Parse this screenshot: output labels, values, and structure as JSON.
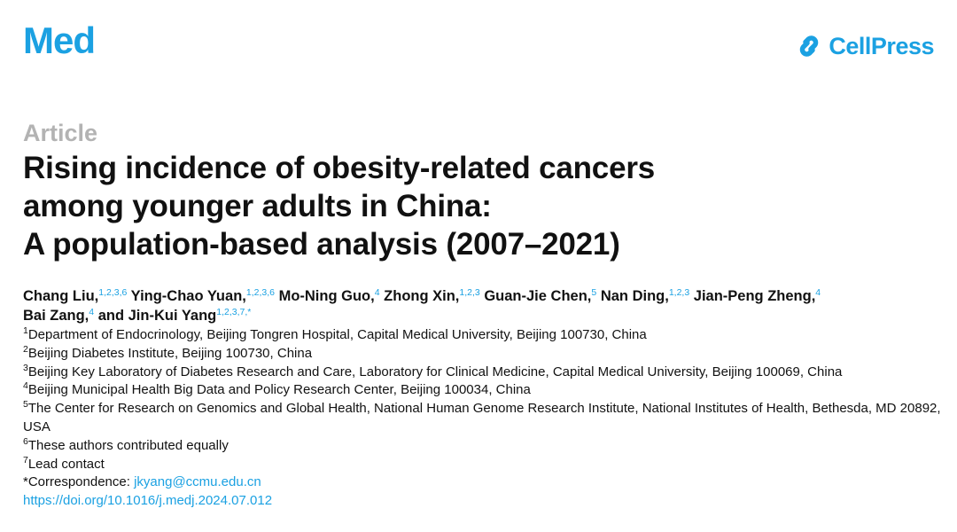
{
  "header": {
    "journal": "Med",
    "publisher": "CellPress",
    "brand_color": "#1ba1e2",
    "publisher_icon": "cellpress-logo-icon"
  },
  "article": {
    "type": "Article",
    "title_lines": [
      "Rising incidence of obesity-related cancers",
      "among younger adults in China:",
      "A population-based analysis (2007–2021)"
    ]
  },
  "authors": [
    {
      "name": "Chang Liu,",
      "sup": "1,2,3,6"
    },
    {
      "name": "Ying-Chao Yuan,",
      "sup": "1,2,3,6"
    },
    {
      "name": "Mo-Ning Guo,",
      "sup": "4"
    },
    {
      "name": "Zhong Xin,",
      "sup": "1,2,3"
    },
    {
      "name": "Guan-Jie Chen,",
      "sup": "5"
    },
    {
      "name": "Nan Ding,",
      "sup": "1,2,3"
    },
    {
      "name": "Jian-Peng Zheng,",
      "sup": "4"
    },
    {
      "name": "Bai Zang,",
      "sup": "4"
    },
    {
      "name": "and Jin-Kui Yang",
      "sup": "1,2,3,7,*"
    }
  ],
  "affiliations": [
    {
      "num": "1",
      "text": "Department of Endocrinology, Beijing Tongren Hospital, Capital Medical University, Beijing 100730, China"
    },
    {
      "num": "2",
      "text": "Beijing Diabetes Institute, Beijing 100730, China"
    },
    {
      "num": "3",
      "text": "Beijing Key Laboratory of Diabetes Research and Care, Laboratory for Clinical Medicine, Capital Medical University, Beijing 100069, China"
    },
    {
      "num": "4",
      "text": "Beijing Municipal Health Big Data and Policy Research Center, Beijing 100034, China"
    },
    {
      "num": "5",
      "text": "The Center for Research on Genomics and Global Health, National Human Genome Research Institute, National Institutes of Health, Bethesda, MD 20892, USA"
    },
    {
      "num": "6",
      "text": "These authors contributed equally"
    },
    {
      "num": "7",
      "text": "Lead contact"
    }
  ],
  "correspondence": {
    "label": "*Correspondence: ",
    "email": "jkyang@ccmu.edu.cn"
  },
  "doi": "https://doi.org/10.1016/j.medj.2024.07.012"
}
